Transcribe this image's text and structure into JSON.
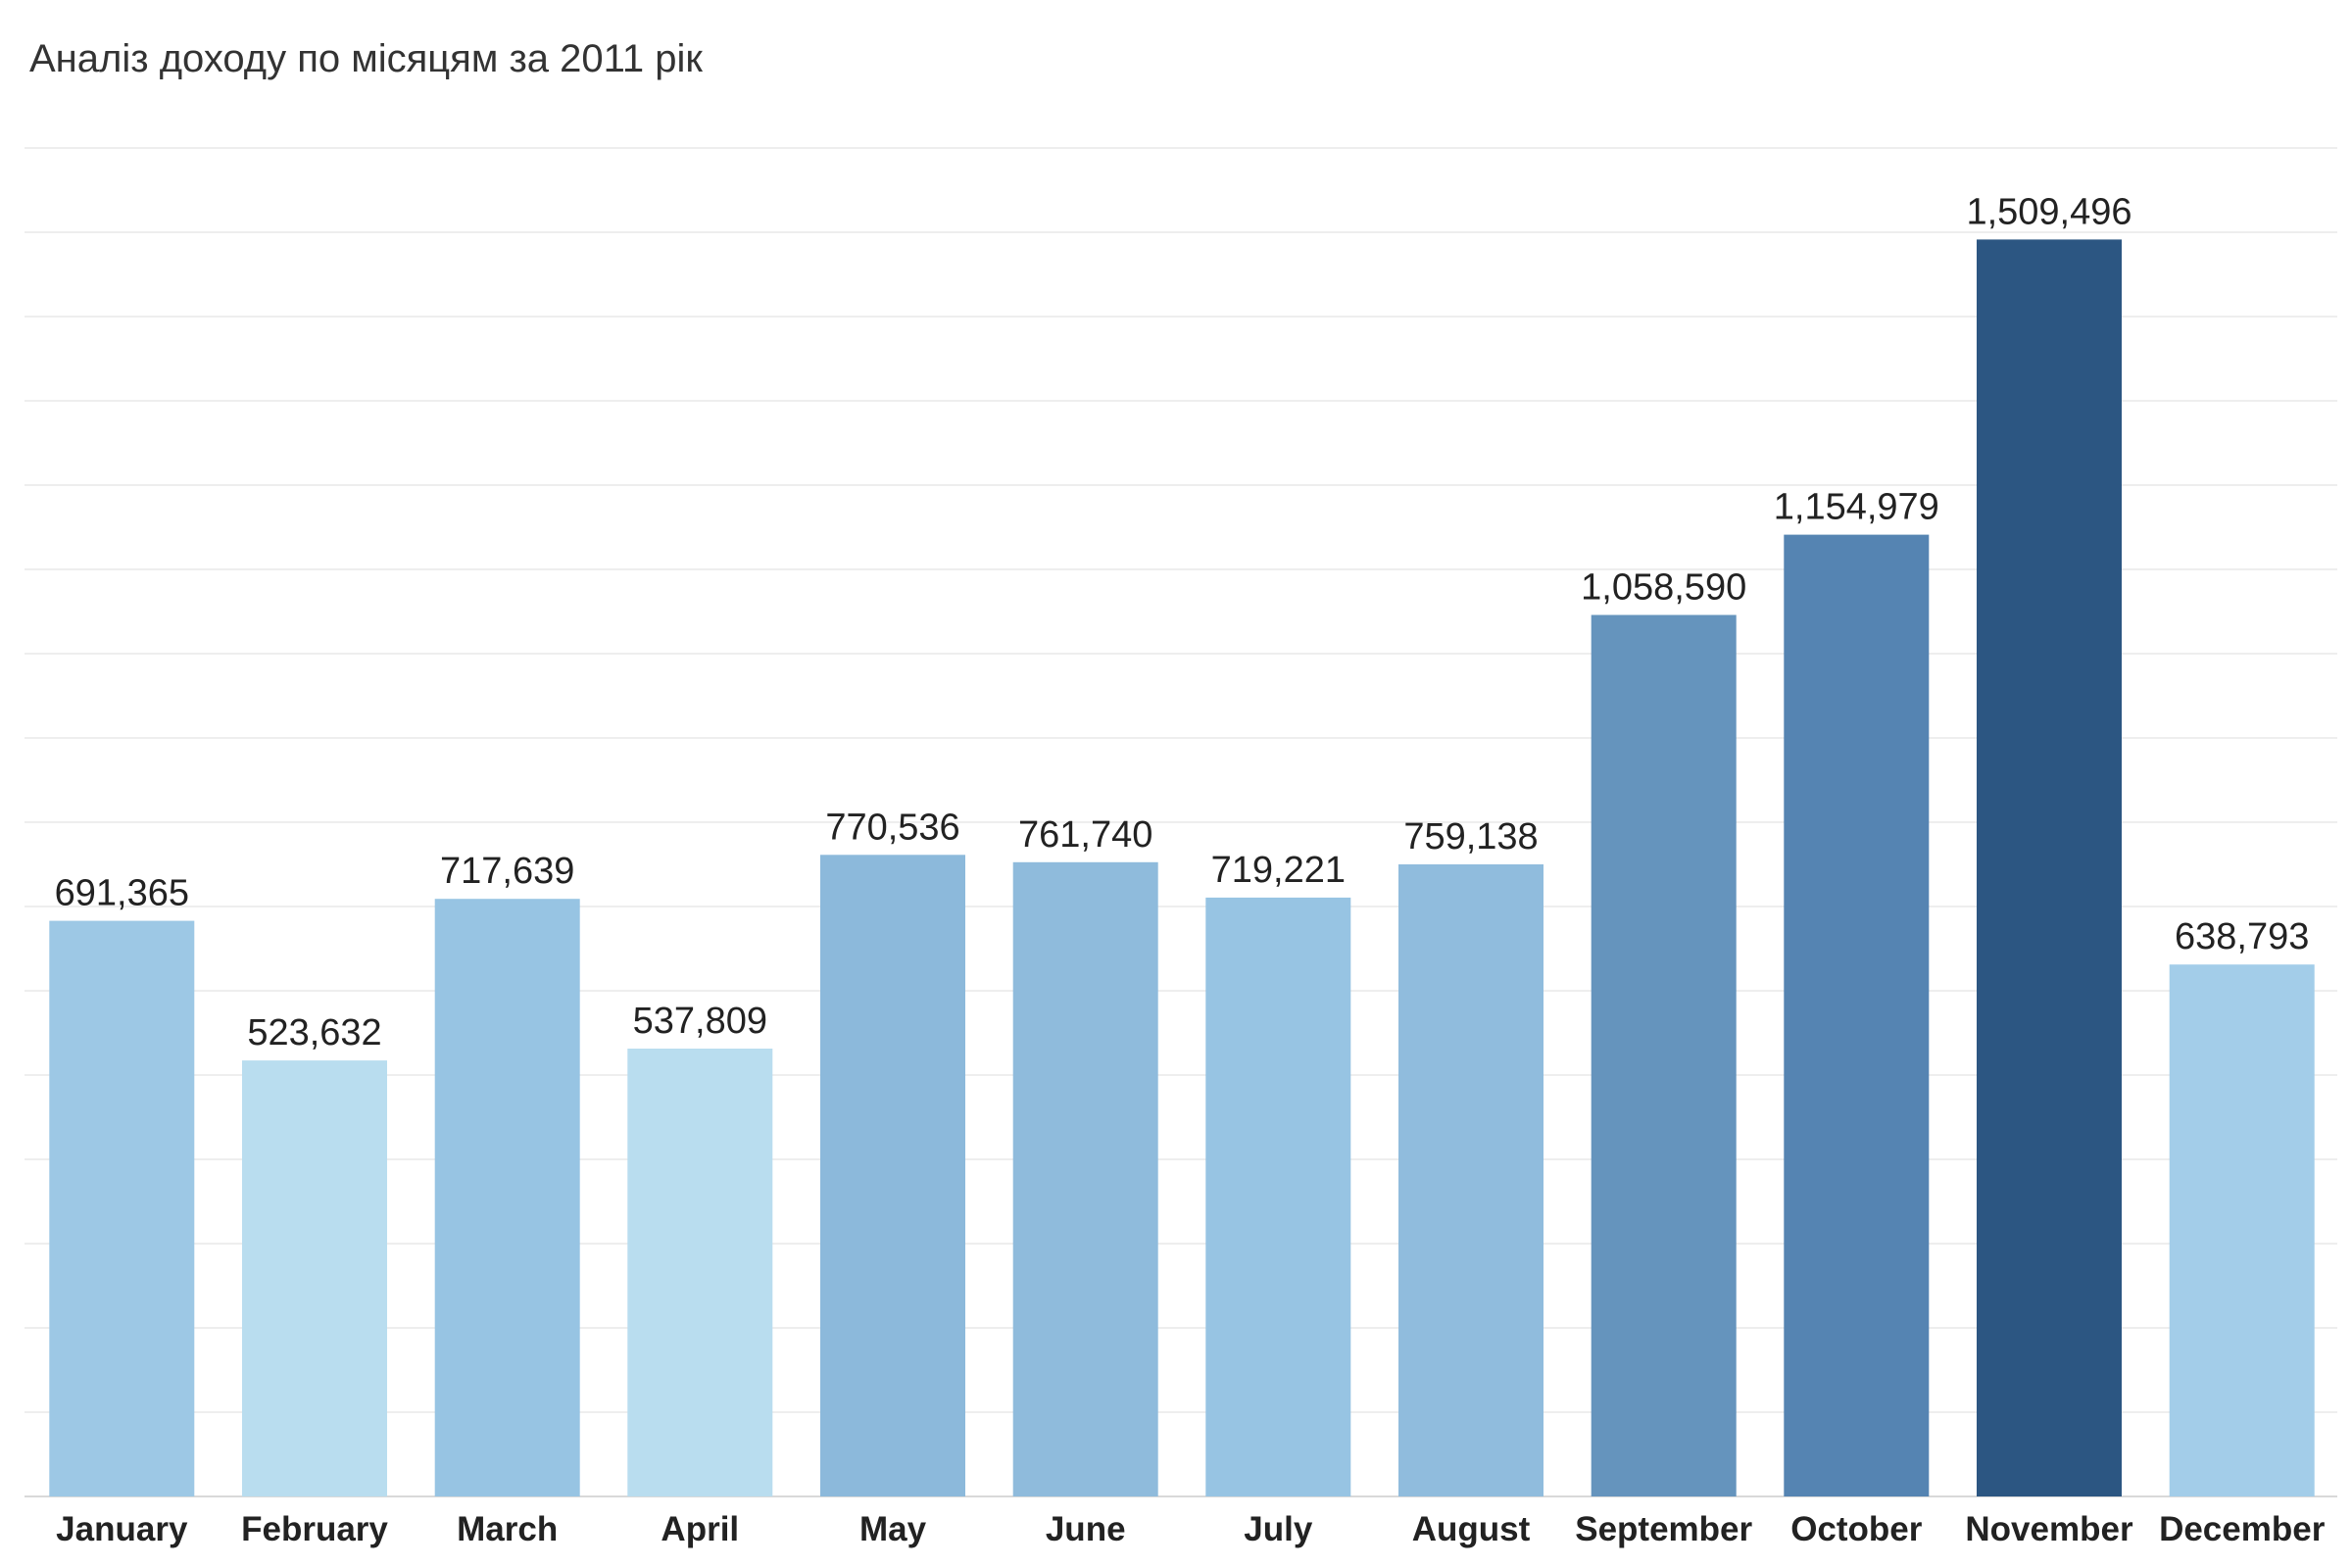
{
  "chart_data": {
    "type": "bar",
    "title": "Аналіз доходу по місяцям за 2011 рік",
    "xlabel": "",
    "ylabel": "",
    "categories": [
      "January",
      "February",
      "March",
      "April",
      "May",
      "June",
      "July",
      "August",
      "September",
      "October",
      "November",
      "December"
    ],
    "values": [
      691365,
      523632,
      717639,
      537809,
      770536,
      761740,
      719221,
      759138,
      1058590,
      1154979,
      1509496,
      638793
    ],
    "data_labels": [
      "691,365",
      "523,632",
      "717,639",
      "537,809",
      "770,536",
      "761,740",
      "719,221",
      "759,138",
      "1,058,590",
      "1,154,979",
      "1,509,496",
      "638,793"
    ],
    "bar_colors": [
      "#9dc8e5",
      "#b9ddef",
      "#97c4e3",
      "#b9ddef",
      "#8cb9db",
      "#8fbbdc",
      "#97c4e3",
      "#90bcdd",
      "#6594bd",
      "#5584b2",
      "#2c5682",
      "#a3cde9"
    ],
    "ylim": [
      0,
      1600000
    ],
    "grid": true,
    "legend": "none"
  }
}
